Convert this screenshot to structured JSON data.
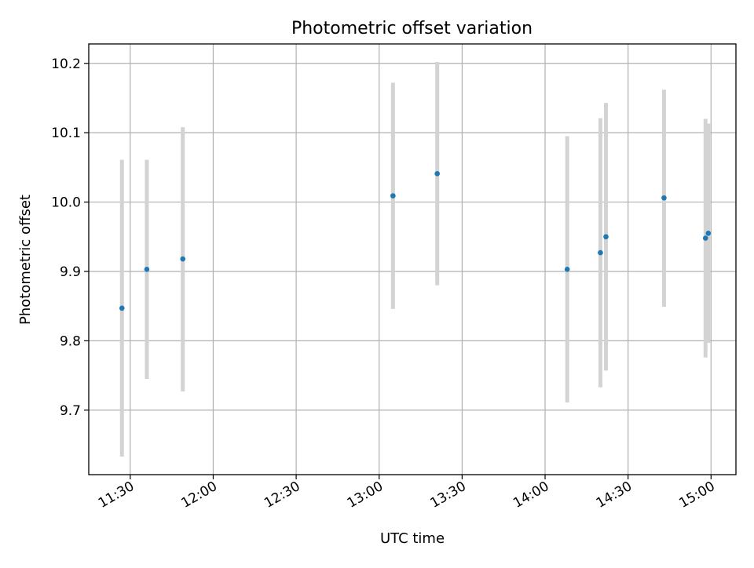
{
  "chart_data": {
    "type": "scatter",
    "title": "Photometric offset variation",
    "xlabel": "UTC time",
    "ylabel": "Photometric offset",
    "x_ticks": [
      "11:30",
      "12:00",
      "12:30",
      "13:00",
      "13:30",
      "14:00",
      "14:30",
      "15:00"
    ],
    "y_ticks": [
      "9.7",
      "9.8",
      "9.9",
      "10.0",
      "10.1",
      "10.2"
    ],
    "xlim": [
      "11:15",
      "15:09"
    ],
    "ylim": [
      9.607,
      10.228
    ],
    "grid": true,
    "colors": {
      "point": "#1f77b4",
      "errorbar": "#d3d3d3",
      "grid": "#b0b0b0"
    },
    "points": [
      {
        "time": "11:27",
        "value": 9.847,
        "err_low": 9.633,
        "err_high": 10.061
      },
      {
        "time": "11:36",
        "value": 9.903,
        "err_low": 9.745,
        "err_high": 10.061
      },
      {
        "time": "11:49",
        "value": 9.918,
        "err_low": 9.727,
        "err_high": 10.108
      },
      {
        "time": "13:05",
        "value": 10.009,
        "err_low": 9.846,
        "err_high": 10.172
      },
      {
        "time": "13:21",
        "value": 10.041,
        "err_low": 9.88,
        "err_high": 10.202
      },
      {
        "time": "14:08",
        "value": 9.903,
        "err_low": 9.711,
        "err_high": 10.095
      },
      {
        "time": "14:20",
        "value": 9.927,
        "err_low": 9.733,
        "err_high": 10.121
      },
      {
        "time": "14:22",
        "value": 9.95,
        "err_low": 9.757,
        "err_high": 10.143
      },
      {
        "time": "14:43",
        "value": 10.006,
        "err_low": 9.849,
        "err_high": 10.162
      },
      {
        "time": "14:58",
        "value": 9.948,
        "err_low": 9.776,
        "err_high": 10.12
      },
      {
        "time": "14:59",
        "value": 9.955,
        "err_low": 9.797,
        "err_high": 10.113
      }
    ]
  }
}
